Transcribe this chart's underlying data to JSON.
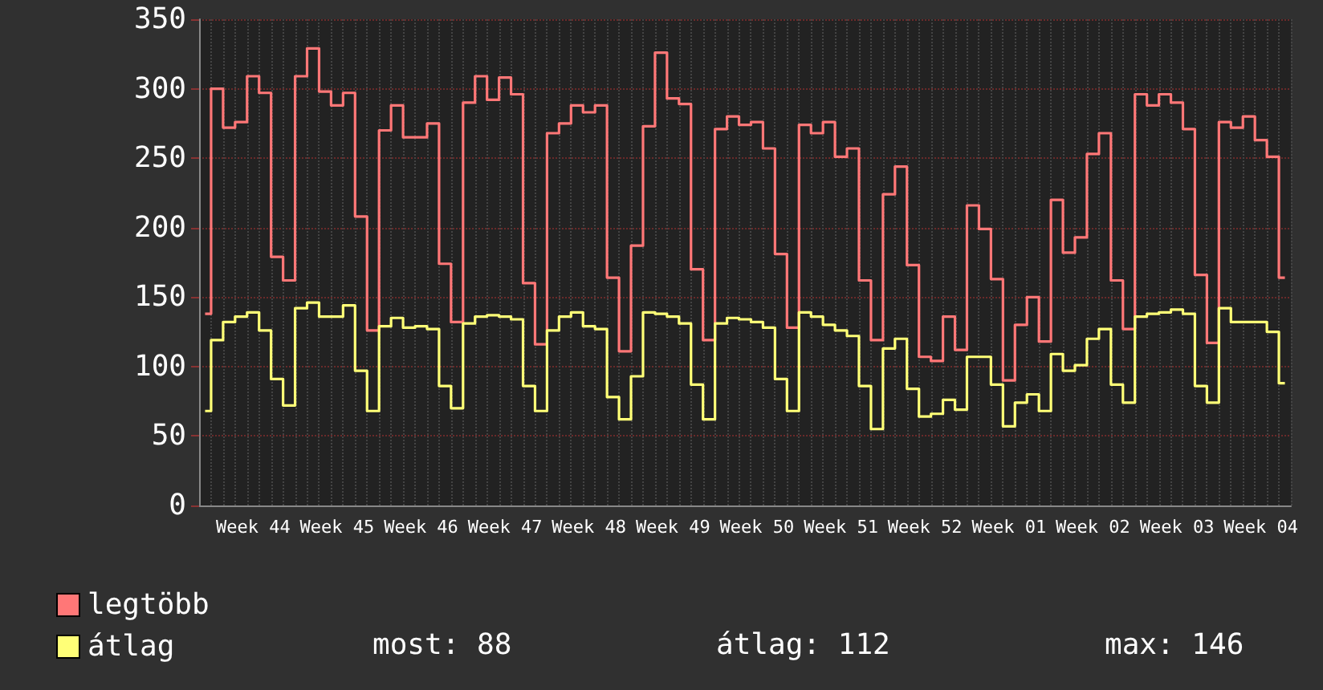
{
  "chart_data": {
    "type": "step",
    "categories": [
      null,
      null,
      null,
      null,
      "Week 44",
      null,
      null,
      null,
      null,
      null,
      null,
      "Week 45",
      null,
      null,
      null,
      null,
      null,
      null,
      "Week 46",
      null,
      null,
      null,
      null,
      null,
      null,
      "Week 47",
      null,
      null,
      null,
      null,
      null,
      null,
      "Week 48",
      null,
      null,
      null,
      null,
      null,
      null,
      "Week 49",
      null,
      null,
      null,
      null,
      null,
      null,
      "Week 50",
      null,
      null,
      null,
      null,
      null,
      null,
      "Week 51",
      null,
      null,
      null,
      null,
      null,
      null,
      "Week 52",
      null,
      null,
      null,
      null,
      null,
      null,
      "Week 01",
      null,
      null,
      null,
      null,
      null,
      null,
      "Week 02",
      null,
      null,
      null,
      null,
      null,
      null,
      "Week 03",
      null,
      null,
      null,
      null,
      null,
      null,
      "Week 04",
      null,
      null
    ],
    "series": [
      {
        "name": "legtöbb",
        "color": "#ff7777",
        "values": [
          138,
          300,
          272,
          276,
          309,
          297,
          179,
          162,
          309,
          329,
          298,
          288,
          297,
          208,
          126,
          270,
          288,
          265,
          265,
          275,
          174,
          132,
          290,
          309,
          292,
          308,
          296,
          160,
          116,
          268,
          275,
          288,
          283,
          288,
          164,
          111,
          187,
          273,
          326,
          293,
          289,
          170,
          119,
          271,
          280,
          274,
          276,
          257,
          181,
          128,
          274,
          268,
          276,
          251,
          257,
          162,
          119,
          224,
          244,
          173,
          107,
          104,
          136,
          112,
          216,
          199,
          163,
          90,
          130,
          150,
          118,
          220,
          182,
          193,
          253,
          268,
          162,
          127,
          296,
          288,
          296,
          290,
          271,
          166,
          117,
          276,
          272,
          280,
          263,
          251,
          164
        ]
      },
      {
        "name": "átlag",
        "color": "#ffff77",
        "values": [
          68,
          119,
          132,
          136,
          139,
          126,
          91,
          72,
          142,
          146,
          136,
          136,
          144,
          97,
          68,
          129,
          135,
          128,
          129,
          127,
          86,
          70,
          131,
          136,
          137,
          136,
          134,
          86,
          68,
          126,
          136,
          139,
          129,
          127,
          78,
          62,
          93,
          139,
          138,
          136,
          131,
          87,
          62,
          131,
          135,
          134,
          132,
          128,
          91,
          68,
          139,
          136,
          130,
          126,
          122,
          86,
          55,
          113,
          120,
          84,
          64,
          66,
          76,
          69,
          107,
          107,
          87,
          57,
          74,
          80,
          68,
          109,
          97,
          101,
          120,
          127,
          87,
          74,
          136,
          138,
          139,
          141,
          138,
          86,
          74,
          142,
          132,
          132,
          132,
          125,
          88
        ]
      }
    ],
    "ylim": [
      0,
      350
    ],
    "yticks": [
      0,
      50,
      100,
      150,
      200,
      250,
      300,
      350
    ],
    "grid": true,
    "legend": "bottom left",
    "marker": "none",
    "line_style": "solid",
    "annotations": [
      "most: 88",
      "átlag: 112",
      "max: 146"
    ]
  }
}
